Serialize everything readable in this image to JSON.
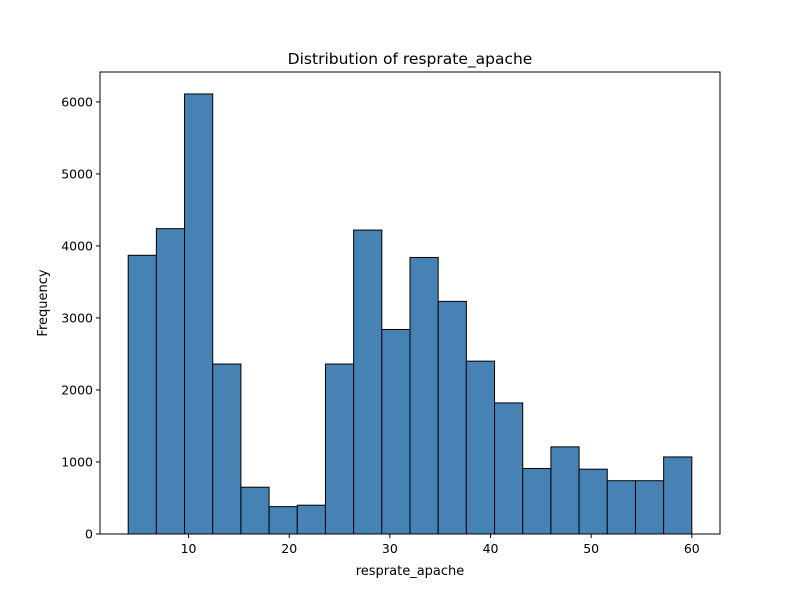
{
  "chart_data": {
    "type": "bar",
    "title": "Distribution of resprate_apache",
    "xlabel": "resprate_apache",
    "ylabel": "Frequency",
    "bar_color": "#4682b4",
    "edge_color": "#000000",
    "bin_width": 2.8,
    "bins": [
      {
        "x0": 4.0,
        "count": 3870
      },
      {
        "x0": 6.8,
        "count": 4240
      },
      {
        "x0": 9.6,
        "count": 6110
      },
      {
        "x0": 12.4,
        "count": 2360
      },
      {
        "x0": 15.2,
        "count": 650
      },
      {
        "x0": 18.0,
        "count": 380
      },
      {
        "x0": 20.8,
        "count": 400
      },
      {
        "x0": 23.6,
        "count": 2360
      },
      {
        "x0": 26.4,
        "count": 4220
      },
      {
        "x0": 29.2,
        "count": 2840
      },
      {
        "x0": 32.0,
        "count": 3840
      },
      {
        "x0": 34.8,
        "count": 3230
      },
      {
        "x0": 37.6,
        "count": 2400
      },
      {
        "x0": 40.4,
        "count": 1820
      },
      {
        "x0": 43.2,
        "count": 910
      },
      {
        "x0": 46.0,
        "count": 1210
      },
      {
        "x0": 48.8,
        "count": 900
      },
      {
        "x0": 51.6,
        "count": 740
      },
      {
        "x0": 54.4,
        "count": 740
      },
      {
        "x0": 57.2,
        "count": 1070
      }
    ],
    "xlim": [
      1.2,
      62.8
    ],
    "ylim": [
      0,
      6415
    ],
    "xticks": [
      10,
      20,
      30,
      40,
      50,
      60
    ],
    "yticks": [
      0,
      1000,
      2000,
      3000,
      4000,
      5000,
      6000
    ],
    "grid": false,
    "legend": false
  }
}
